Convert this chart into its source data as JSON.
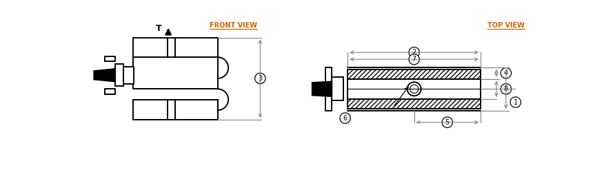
{
  "title_front": "FRONT VIEW",
  "title_top": "TOP VIEW",
  "bg_color": "#ffffff",
  "line_color": "#000000",
  "dim_color": "#808080",
  "label_color": "#cc6600",
  "fig_width": 8.76,
  "fig_height": 2.82,
  "dpi": 100
}
